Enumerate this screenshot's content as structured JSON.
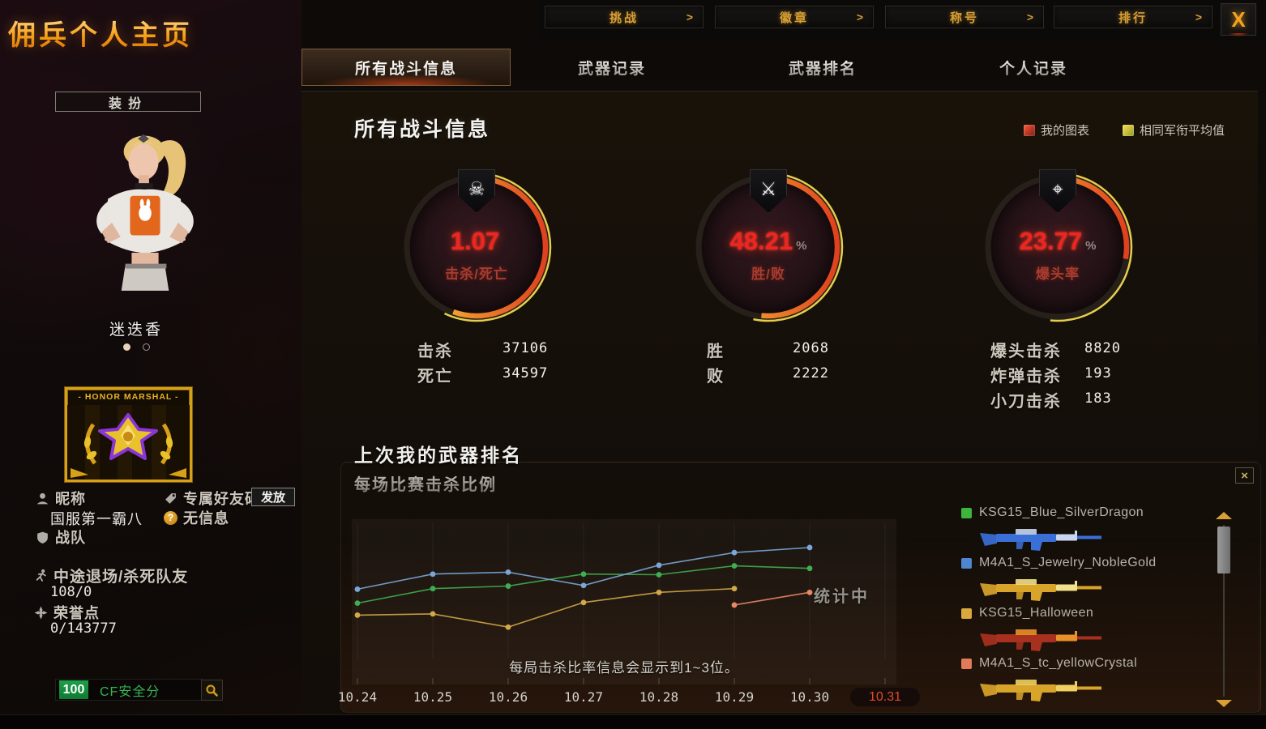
{
  "title": "佣兵个人主页",
  "top_nav": {
    "arrow": ">",
    "close": "X",
    "items": [
      "挑战",
      "徽章",
      "称号",
      "排行"
    ]
  },
  "tabs": [
    {
      "label": "所有战斗信息",
      "active": true
    },
    {
      "label": "武器记录",
      "active": false
    },
    {
      "label": "武器排名",
      "active": false
    },
    {
      "label": "个人记录",
      "active": false
    }
  ],
  "sidebar": {
    "dress_button": "装扮",
    "character_name": "迷迭香",
    "badge_title": "- HONOR MARSHAL -",
    "nickname_label": "昵称",
    "nickname_value": "国服第一霸八",
    "friend_code_label": "专属好友码",
    "friend_code_action": "发放",
    "friend_code_status": "无信息",
    "clan_label": "战队",
    "quit_label": "中途退场/杀死队友",
    "quit_value": "108/0",
    "honor_label": "荣誉点",
    "honor_value": "0/143777",
    "safety_score": "100",
    "safety_label": "CF安全分"
  },
  "main": {
    "heading": "所有战斗信息",
    "legend": {
      "mine": "我的图表",
      "avg": "相同军衔平均值",
      "mine_color": "#c43b28",
      "avg_color": "#cfc23e"
    },
    "stats": {
      "col1": [
        {
          "label": "击杀",
          "value": "37106"
        },
        {
          "label": "死亡",
          "value": "34597"
        }
      ],
      "col2": [
        {
          "label": "胜",
          "value": "2068"
        },
        {
          "label": "败",
          "value": "2222"
        }
      ],
      "col3": [
        {
          "label": "爆头击杀",
          "value": "8820"
        },
        {
          "label": "炸弹击杀",
          "value": "193"
        },
        {
          "label": "小刀击杀",
          "value": "183"
        }
      ]
    },
    "section2_title": "上次我的武器排名",
    "section2_subtitle": "每场比赛击杀比例",
    "chart_note": "统计中",
    "chart_caption": "每局击杀比率信息会显示到1~3位。"
  },
  "weapons": {
    "close": "×",
    "items": [
      {
        "name": "KSG15_Blue_SilverDragon",
        "swatch": "#3db53d",
        "gun_main": "#3a6fd8",
        "gun_accent": "#c9d6ef"
      },
      {
        "name": "M4A1_S_Jewelry_NobleGold",
        "swatch": "#4f86d0",
        "gun_main": "#d8a429",
        "gun_accent": "#f2e08a"
      },
      {
        "name": "KSG15_Halloween",
        "swatch": "#d9a93f",
        "gun_main": "#a8301e",
        "gun_accent": "#e8902a"
      },
      {
        "name": "M4A1_S_tc_yellowCrystal",
        "swatch": "#e07a58",
        "gun_main": "#d8a429",
        "gun_accent": "#f0d060"
      }
    ]
  },
  "chart_data": [
    {
      "type": "gauge",
      "title": "击杀/死亡",
      "value": "1.07",
      "unit": "",
      "icon": "skull-crossbones",
      "my_deg": 200,
      "avg_deg": 206,
      "kills": 37106,
      "deaths": 34597
    },
    {
      "type": "gauge",
      "title": "胜/败",
      "value": "48.21",
      "unit": "%",
      "icon": "crossed-rifles",
      "my_deg": 186,
      "avg_deg": 192,
      "wins": 2068,
      "losses": 2222
    },
    {
      "type": "gauge",
      "title": "爆头率",
      "value": "23.77",
      "unit": "%",
      "icon": "rifle-crosshair",
      "my_deg": 100,
      "avg_deg": 186,
      "headshot_kills": 8820,
      "bomb_kills": 193,
      "knife_kills": 183
    },
    {
      "type": "line",
      "title": "每场比赛击杀比例",
      "x": [
        "10.24",
        "10.25",
        "10.26",
        "10.27",
        "10.28",
        "10.29",
        "10.30",
        "10.31"
      ],
      "highlight_x": "10.31",
      "ylim": [
        0,
        100
      ],
      "grid": "vertical-only",
      "note": "统计中",
      "caption": "每局击杀比率信息会显示到1~3位。",
      "series": [
        {
          "name": "KSG15_Blue_SilverDragon",
          "color": "#3fae4f",
          "values": [
            40,
            51.5,
            53.5,
            63,
            62.5,
            69.5,
            67.5,
            null
          ]
        },
        {
          "name": "M4A1_S_Jewelry_NobleGold",
          "color": "#7aa7d8",
          "values": [
            51,
            63,
            64.5,
            54,
            70,
            80,
            84,
            null
          ]
        },
        {
          "name": "KSG15_Halloween",
          "color": "#d2a848",
          "values": [
            30.5,
            31.5,
            21,
            40.5,
            48.5,
            51.5,
            null,
            null
          ]
        },
        {
          "name": "M4A1_S_tc_yellowCrystal",
          "color": "#e58a64",
          "values": [
            null,
            null,
            null,
            null,
            null,
            38.5,
            48.5,
            null
          ]
        }
      ]
    }
  ]
}
